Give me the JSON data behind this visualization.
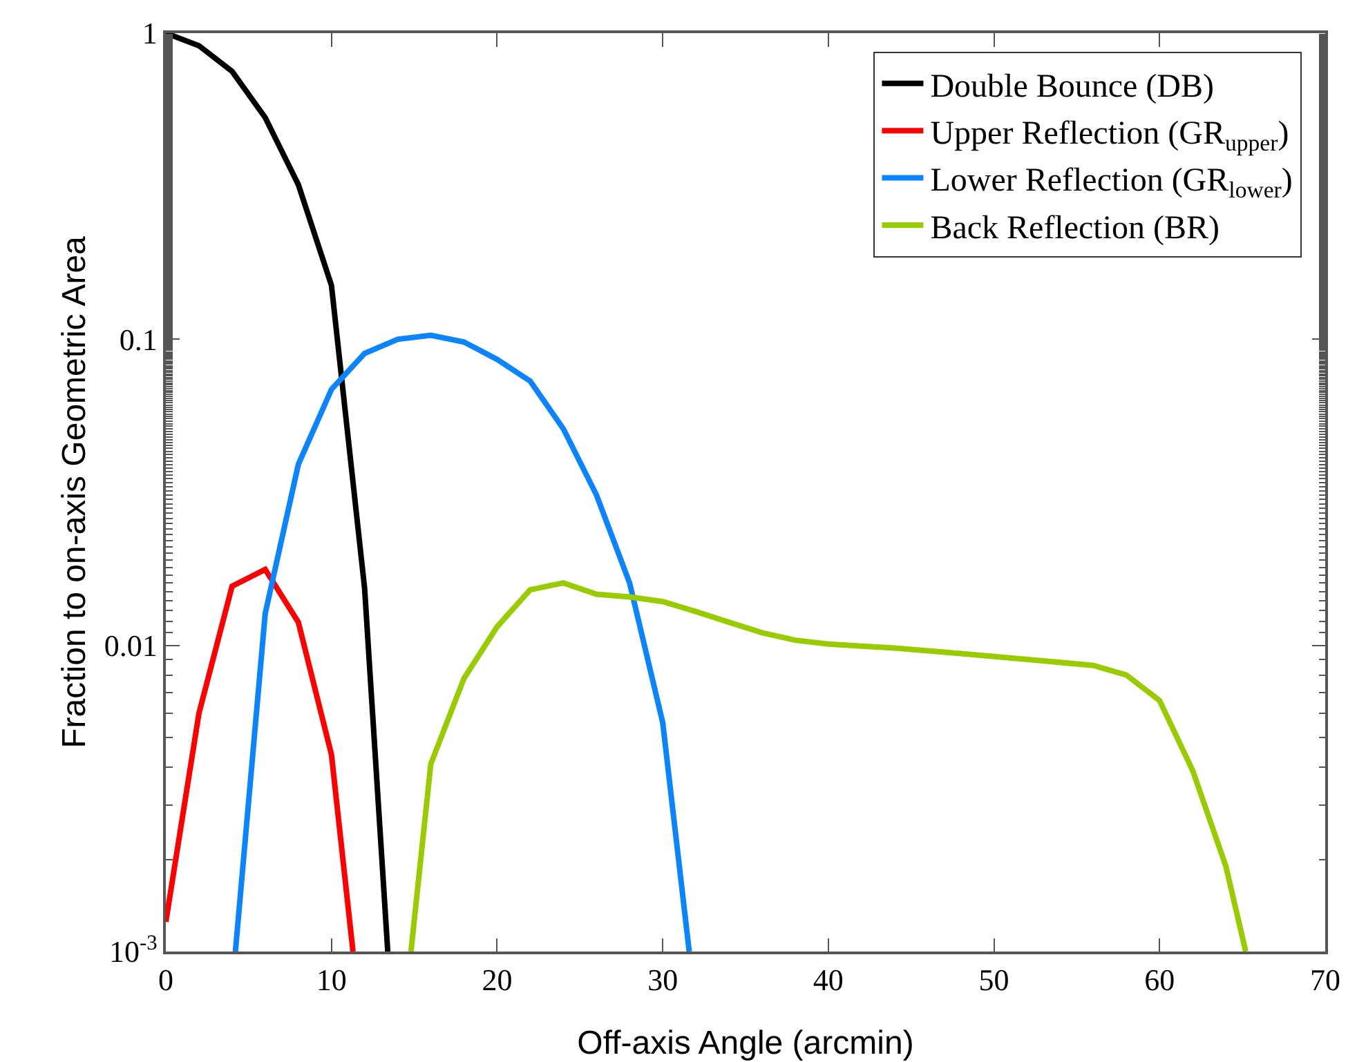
{
  "chart_data": {
    "type": "line",
    "xlabel": "Off-axis Angle (arcmin)",
    "ylabel": "Fraction to on-axis Geometric Area",
    "log": "y",
    "grid": false,
    "legend": "top right",
    "line_style": "solid",
    "marker": "none",
    "xlim": [
      0,
      70
    ],
    "xticks": [
      0,
      10,
      20,
      30,
      40,
      50,
      60,
      70
    ],
    "ylim": [
      0.001,
      1
    ],
    "yticks": [
      {
        "value": 0.001,
        "label": "10$^{-3}$"
      },
      0.01,
      0.1,
      1
    ],
    "series": [
      {
        "name": "Double Bounce (DB)",
        "color": "#000000",
        "x": [
          0,
          2,
          4,
          6,
          8,
          10,
          12,
          13.4
        ],
        "values": [
          1.0,
          0.91,
          0.75,
          0.53,
          0.32,
          0.15,
          0.0154,
          0.001
        ]
      },
      {
        "name": "Upper Reflection (GR$_{upper}$)",
        "color": "#ff0000",
        "x": [
          0,
          2,
          4,
          6,
          8,
          10,
          11.3
        ],
        "values": [
          0.00125,
          0.006,
          0.0156,
          0.0177,
          0.0119,
          0.0044,
          0.001
        ]
      },
      {
        "name": "Lower Reflection (GR$_{lower}$)",
        "color": "#0a84ff",
        "x": [
          4.2,
          6,
          8,
          10,
          12,
          14,
          16,
          18,
          20,
          22,
          24,
          26,
          28,
          30,
          31.6
        ],
        "values": [
          0.001,
          0.0127,
          0.039,
          0.0686,
          0.0899,
          0.1,
          0.103,
          0.098,
          0.086,
          0.073,
          0.051,
          0.031,
          0.016,
          0.0056,
          0.001
        ]
      },
      {
        "name": "Back Reflection (BR)",
        "color": "#99cc00",
        "x": [
          14.8,
          16,
          18,
          20,
          22,
          24,
          26,
          28,
          30,
          32,
          34,
          36,
          38,
          40,
          44,
          48,
          52,
          56,
          58,
          60,
          62,
          64,
          65.2
        ],
        "values": [
          0.001,
          0.0041,
          0.0078,
          0.0115,
          0.0152,
          0.016,
          0.0147,
          0.0144,
          0.0139,
          0.0129,
          0.0119,
          0.011,
          0.0104,
          0.0101,
          0.0098,
          0.0094,
          0.009,
          0.0086,
          0.008,
          0.0066,
          0.0039,
          0.0019,
          0.001
        ]
      }
    ]
  }
}
